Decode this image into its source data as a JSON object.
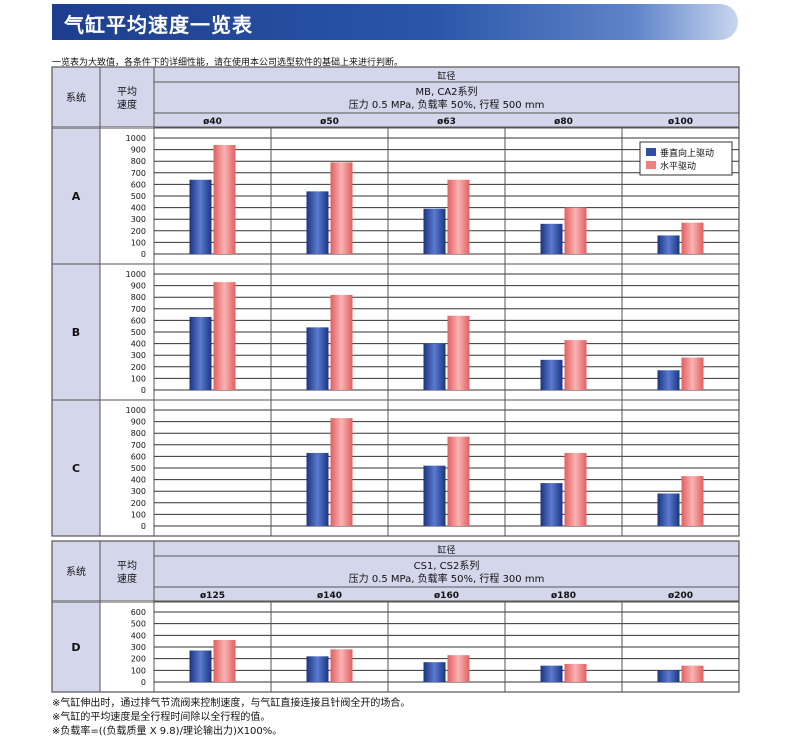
{
  "banner": {
    "title": "气缸平均速度一览表"
  },
  "intro": "一览表为大致值，各条件下的详细性能，请在使用本公司选型软件的基础上来进行判断。",
  "headers": {
    "system": "系统",
    "speed_line1": "平均",
    "speed_line2": "速度",
    "bore": "缸径"
  },
  "legend": {
    "vertical": "垂直向上驱动",
    "horizontal": "水平驱动"
  },
  "colors": {
    "vertical": "#2f4fa3",
    "horizontal": "#f08080",
    "header_bg": "#d4d6ec",
    "grid": "#333333"
  },
  "notes": [
    "※气缸伸出时，通过排气节流阀来控制速度，与气缸直接连接且针阀全开的场合。",
    "※气缸的平均速度是全行程时间除以全行程的值。",
    "※负载率=((负载质量 X 9.8)/理论输出力)X100%。"
  ],
  "chart_data": [
    {
      "type": "bar",
      "table_title": "MB, CA2系列",
      "conditions": "压力 0.5 MPa, 负载率 50%, 行程 500 mm",
      "categories": [
        "ø40",
        "ø50",
        "ø63",
        "ø80",
        "ø100"
      ],
      "yticks": [
        1000,
        900,
        800,
        700,
        600,
        500,
        400,
        300,
        200,
        100,
        0
      ],
      "ylim": [
        0,
        1000
      ],
      "legend_position": "top-right",
      "panels": [
        {
          "system": "A",
          "series": [
            {
              "name": "垂直向上驱动",
              "values": [
                640,
                540,
                390,
                260,
                160
              ]
            },
            {
              "name": "水平驱动",
              "values": [
                940,
                790,
                640,
                400,
                270
              ]
            }
          ]
        },
        {
          "system": "B",
          "series": [
            {
              "name": "垂直向上驱动",
              "values": [
                630,
                540,
                400,
                260,
                170
              ]
            },
            {
              "name": "水平驱动",
              "values": [
                930,
                820,
                640,
                430,
                280
              ]
            }
          ]
        },
        {
          "system": "C",
          "series": [
            {
              "name": "垂直向上驱动",
              "values": [
                null,
                630,
                520,
                370,
                280
              ]
            },
            {
              "name": "水平驱动",
              "values": [
                null,
                930,
                770,
                630,
                430
              ]
            }
          ]
        }
      ]
    },
    {
      "type": "bar",
      "table_title": "CS1, CS2系列",
      "conditions": "压力  0.5 MPa, 负载率 50%, 行程 300 mm",
      "categories": [
        "ø125",
        "ø140",
        "ø160",
        "ø180",
        "ø200"
      ],
      "yticks": [
        600,
        500,
        400,
        300,
        200,
        100,
        0
      ],
      "ylim": [
        0,
        600
      ],
      "panels": [
        {
          "system": "D",
          "series": [
            {
              "name": "垂直向上驱动",
              "values": [
                270,
                220,
                170,
                140,
                100
              ]
            },
            {
              "name": "水平驱动",
              "values": [
                360,
                280,
                230,
                155,
                140
              ]
            }
          ]
        }
      ]
    }
  ]
}
